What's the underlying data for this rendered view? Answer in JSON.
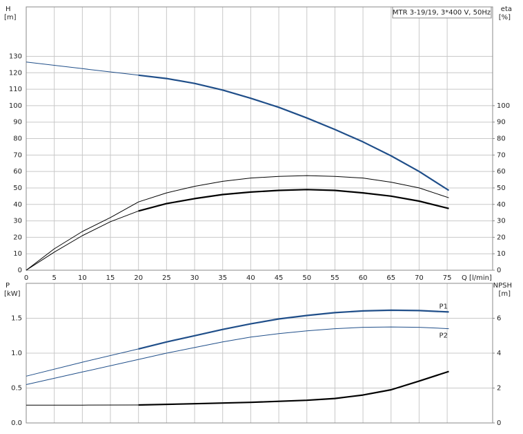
{
  "chart_data": [
    {
      "type": "line",
      "annotation": "MTR 3-19/19, 3*400 V, 50Hz",
      "ylabel": "H",
      "yunit": "[m]",
      "y2label": "eta",
      "y2unit": "[%]",
      "xlabel": "Q [l/min]",
      "xlim": [
        0,
        83.1
      ],
      "xticks": [
        0,
        5,
        10,
        15,
        20,
        25,
        30,
        35,
        40,
        45,
        50,
        55,
        60,
        65,
        70,
        75
      ],
      "ylim": [
        0,
        160
      ],
      "yticks": [
        0,
        10,
        20,
        30,
        40,
        50,
        60,
        70,
        80,
        90,
        100,
        110,
        120,
        130
      ],
      "y2lim": [
        0,
        160
      ],
      "y2ticks": [
        0,
        10,
        20,
        30,
        40,
        50,
        60,
        70,
        80,
        90,
        100
      ],
      "grid": true,
      "series": [
        {
          "color": "#1f4e89",
          "width": 1,
          "x": [
            0,
            10,
            20
          ],
          "values": [
            126.5,
            122.5,
            118.5
          ]
        },
        {
          "color": "#1f4e89",
          "width": 2.2,
          "x": [
            20,
            25,
            30,
            35,
            40,
            45,
            50,
            55,
            60,
            65,
            70,
            75.3
          ],
          "values": [
            118.5,
            116.5,
            113.5,
            109.5,
            104.5,
            99,
            92.5,
            85.5,
            78,
            69.5,
            60,
            48.5
          ]
        },
        {
          "color": "#000000",
          "width": 1,
          "axis": "y2",
          "x": [
            0,
            5,
            10,
            15,
            20,
            25,
            30,
            35,
            40,
            45,
            50,
            55,
            60,
            65,
            70,
            75.3
          ],
          "values": [
            0,
            13,
            23.5,
            32,
            41.5,
            47,
            51,
            54,
            56,
            57,
            57.5,
            57,
            56,
            53.5,
            50,
            44
          ]
        },
        {
          "color": "#000000",
          "width": 1,
          "axis": "y2",
          "x": [
            0,
            5,
            10,
            15,
            20
          ],
          "values": [
            0,
            11,
            21,
            29.5,
            36
          ]
        },
        {
          "color": "#000000",
          "width": 2.2,
          "axis": "y2",
          "x": [
            20,
            25,
            30,
            35,
            40,
            45,
            50,
            55,
            60,
            65,
            70,
            75.3
          ],
          "values": [
            36,
            40.5,
            43.5,
            46,
            47.5,
            48.5,
            49,
            48.5,
            47,
            45,
            42,
            37.5
          ]
        }
      ]
    },
    {
      "type": "line",
      "ylabel": "P",
      "yunit": "[kW]",
      "y2label": "NPSH",
      "y2unit": "[m]",
      "xlim": [
        0,
        83.1
      ],
      "ylim": [
        0,
        2
      ],
      "yticks": [
        {
          "value": 0,
          "label": "0.0"
        },
        0.5,
        {
          "value": 1,
          "label": "1.0"
        },
        1.5
      ],
      "y2lim": [
        0,
        8
      ],
      "y2ticks": [
        0,
        2,
        4,
        6
      ],
      "grid": true,
      "series": [
        {
          "color": "#1f4e89",
          "width": 1,
          "x": [
            0,
            10,
            20
          ],
          "values": [
            0.67,
            0.87,
            1.06
          ]
        },
        {
          "name": "P1",
          "color": "#1f4e89",
          "width": 2.2,
          "x": [
            20,
            25,
            30,
            35,
            40,
            45,
            50,
            55,
            60,
            65,
            70,
            75.3
          ],
          "values": [
            1.06,
            1.16,
            1.25,
            1.34,
            1.42,
            1.49,
            1.54,
            1.58,
            1.605,
            1.615,
            1.61,
            1.59
          ]
        },
        {
          "name": "P2",
          "color": "#1f4e89",
          "width": 1,
          "x": [
            0,
            10,
            20,
            25,
            30,
            35,
            40,
            45,
            50,
            55,
            60,
            65,
            70,
            75.3
          ],
          "values": [
            0.55,
            0.73,
            0.91,
            1.0,
            1.08,
            1.16,
            1.23,
            1.28,
            1.32,
            1.35,
            1.37,
            1.375,
            1.37,
            1.35
          ]
        },
        {
          "color": "#000000",
          "width": 1,
          "axis": "y2",
          "x": [
            0,
            10,
            20
          ],
          "values": [
            1.02,
            1.02,
            1.03
          ]
        },
        {
          "color": "#000000",
          "width": 2.2,
          "axis": "y2",
          "x": [
            20,
            30,
            40,
            50,
            55,
            60,
            65,
            70,
            75.3
          ],
          "values": [
            1.03,
            1.1,
            1.18,
            1.3,
            1.4,
            1.6,
            1.9,
            2.4,
            2.95
          ]
        }
      ]
    }
  ]
}
